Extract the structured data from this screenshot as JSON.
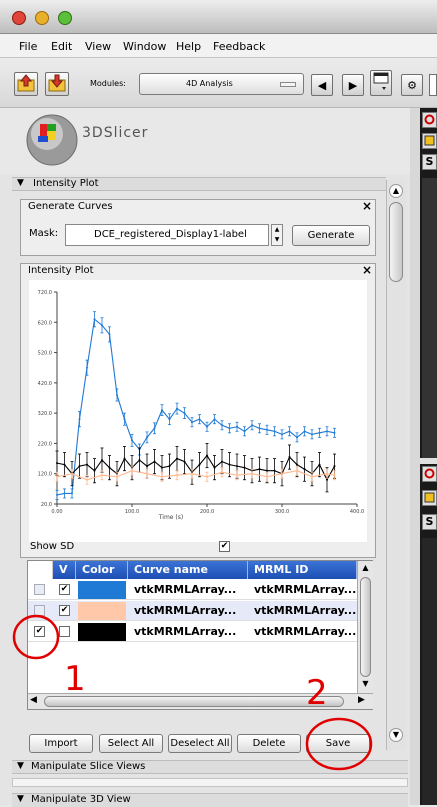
{
  "menu": [
    "File",
    "Edit",
    "View",
    "Window",
    "Help",
    "Feedback"
  ],
  "toolbar": {
    "modules_label": "Modules:",
    "module_value": "4D Analysis"
  },
  "logo": {
    "text": "3DSlicer"
  },
  "intensity_section": {
    "title": "Intensity Plot"
  },
  "generate_curves": {
    "title": "Generate Curves",
    "mask_label": "Mask:",
    "mask_value": "DCE_registered_Display1-label",
    "generate_button": "Generate"
  },
  "intensity_plot": {
    "title": "Intensity Plot"
  },
  "show_sd": {
    "label": "Show SD",
    "checked": true
  },
  "table": {
    "headers": [
      "V",
      "Color",
      "Curve name",
      "MRML ID"
    ],
    "rows": [
      {
        "selected": false,
        "visible": true,
        "color": "#1f7ad6",
        "name": "vtkMRMLArray...",
        "id": "vtkMRMLArray..."
      },
      {
        "selected": false,
        "visible": true,
        "color": "#ffc8a8",
        "name": "vtkMRMLArray...",
        "id": "vtkMRMLArray..."
      },
      {
        "selected": true,
        "visible": false,
        "color": "#000000",
        "name": "vtkMRMLArray...",
        "id": "vtkMRMLArray..."
      }
    ]
  },
  "buttons": {
    "import": "Import",
    "select_all": "Select All",
    "deselect_all": "Deselect All",
    "delete": "Delete",
    "save": "Save"
  },
  "annotations": {
    "one": "1",
    "two": "2"
  },
  "sections": {
    "slice_views": "Manipulate Slice Views",
    "views_3d": "Manipulate 3D View"
  },
  "colors": {
    "series_blue": "#1f7ad6",
    "series_black": "#000000",
    "series_peach": "#ffb68c",
    "annotation_red": "#e00000",
    "table_header": "#2a5fc8"
  },
  "chart_data": {
    "type": "line",
    "xlabel": "Time (s)",
    "ylabel": "",
    "xlim": [
      0,
      400
    ],
    "ylim": [
      20,
      720
    ],
    "x_ticks": [
      "0.00",
      "100.0",
      "200.0",
      "300.0",
      "400.0"
    ],
    "y_ticks": [
      "20.0",
      "120.0",
      "220.0",
      "320.0",
      "420.0",
      "520.0",
      "620.0",
      "720.0"
    ],
    "grid": false,
    "series": [
      {
        "color": "#1f7ad6",
        "x": [
          0,
          10,
          20,
          30,
          40,
          50,
          60,
          70,
          80,
          90,
          100,
          110,
          120,
          130,
          140,
          150,
          160,
          170,
          180,
          190,
          200,
          210,
          220,
          230,
          240,
          250,
          260,
          270,
          280,
          290,
          300,
          310,
          320,
          330,
          340,
          350,
          360,
          370
        ],
        "y": [
          50,
          55,
          55,
          300,
          470,
          630,
          610,
          580,
          380,
          300,
          230,
          200,
          240,
          270,
          330,
          300,
          335,
          320,
          290,
          300,
          275,
          300,
          280,
          270,
          275,
          260,
          280,
          270,
          265,
          260,
          250,
          260,
          240,
          260,
          250,
          255,
          260,
          255
        ],
        "err": [
          15,
          15,
          15,
          25,
          25,
          25,
          25,
          25,
          20,
          20,
          20,
          18,
          18,
          18,
          18,
          18,
          18,
          18,
          15,
          15,
          15,
          15,
          15,
          15,
          15,
          15,
          15,
          15,
          15,
          15,
          15,
          15,
          15,
          15,
          15,
          15,
          15,
          15
        ]
      },
      {
        "color": "#000000",
        "x": [
          0,
          10,
          20,
          30,
          40,
          50,
          60,
          70,
          80,
          90,
          100,
          110,
          120,
          130,
          140,
          150,
          160,
          170,
          180,
          190,
          200,
          210,
          220,
          230,
          240,
          250,
          260,
          270,
          280,
          290,
          300,
          310,
          320,
          330,
          340,
          350,
          360,
          370
        ],
        "y": [
          155,
          150,
          120,
          145,
          150,
          130,
          165,
          140,
          120,
          170,
          140,
          165,
          145,
          160,
          140,
          145,
          170,
          160,
          125,
          150,
          180,
          140,
          160,
          150,
          145,
          140,
          130,
          135,
          130,
          130,
          120,
          175,
          150,
          135,
          120,
          150,
          100,
          145
        ],
        "err": [
          40,
          40,
          40,
          40,
          40,
          40,
          40,
          40,
          40,
          40,
          40,
          40,
          40,
          40,
          40,
          40,
          40,
          40,
          40,
          40,
          40,
          40,
          40,
          40,
          40,
          40,
          40,
          40,
          40,
          40,
          40,
          40,
          40,
          40,
          40,
          40,
          40,
          40
        ]
      },
      {
        "color": "#ffb68c",
        "x": [
          0,
          20,
          40,
          60,
          80,
          100,
          120,
          140,
          160,
          180,
          200,
          220,
          240,
          260,
          280,
          300,
          320,
          340,
          360,
          370
        ],
        "y": [
          110,
          120,
          100,
          115,
          110,
          130,
          120,
          110,
          115,
          120,
          110,
          125,
          115,
          120,
          110,
          120,
          130,
          110,
          120,
          115
        ],
        "err": [
          15,
          15,
          15,
          15,
          15,
          15,
          15,
          15,
          15,
          15,
          15,
          15,
          15,
          15,
          15,
          15,
          15,
          15,
          15,
          15
        ]
      }
    ]
  }
}
